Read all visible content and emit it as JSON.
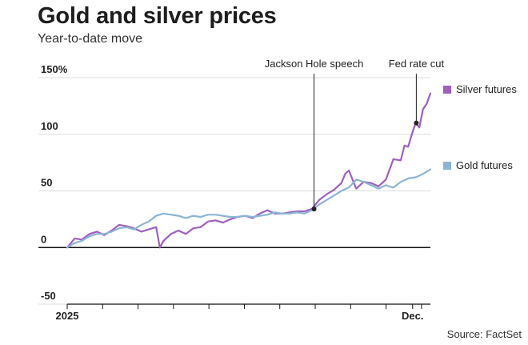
{
  "header": {
    "title": "Gold and silver prices",
    "subtitle": "Year-to-date move",
    "source": "Source: FactSet"
  },
  "chart_data": {
    "type": "line",
    "title": "Gold and silver prices",
    "subtitle": "Year-to-date move",
    "xlabel": "",
    "ylabel": "",
    "x_tick_labels": [
      "2025",
      "Dec."
    ],
    "y_tick_labels": [
      "150%",
      "100",
      "50",
      "0",
      "-50"
    ],
    "y_ticks": [
      150,
      100,
      50,
      0,
      -50
    ],
    "ylim": [
      -50,
      150
    ],
    "x_unit": "weeks since start of 2025",
    "xlim": [
      0,
      49
    ],
    "grid": true,
    "legend_position": "right",
    "annotations": [
      {
        "label": "Jackson Hole speech",
        "x": 33.3,
        "y": 34
      },
      {
        "label": "Fed rate cut",
        "x": 47.1,
        "y": 110
      }
    ],
    "series": [
      {
        "name": "Silver futures",
        "color": "#a05fbf",
        "x": [
          0,
          1,
          2,
          3,
          4,
          5,
          6,
          7,
          8,
          9,
          10,
          11,
          12,
          12.5,
          13,
          14,
          15,
          16,
          17,
          18,
          19,
          20,
          21,
          22,
          23,
          24,
          25,
          26,
          27,
          28,
          29,
          30,
          31,
          32,
          33,
          34,
          35,
          36,
          37,
          37.5,
          38,
          39,
          40,
          41,
          42,
          43,
          44,
          45,
          45.5,
          46,
          46.5,
          47,
          47.5,
          48,
          48.5,
          49
        ],
        "values": [
          0,
          8,
          7,
          12,
          14,
          11,
          15,
          20,
          19,
          17,
          14,
          16,
          18,
          0,
          6,
          12,
          15,
          12,
          17,
          18,
          23,
          24,
          22,
          25,
          27,
          28,
          26,
          30,
          33,
          30,
          30,
          31,
          32,
          32,
          34,
          42,
          47,
          51,
          57,
          65,
          68,
          52,
          58,
          57,
          54,
          60,
          78,
          77,
          90,
          89,
          100,
          110,
          106,
          122,
          127,
          136
        ]
      },
      {
        "name": "Gold futures",
        "color": "#8bb5d6",
        "x": [
          0,
          1,
          2,
          3,
          4,
          5,
          6,
          7,
          8,
          9,
          10,
          11,
          12,
          13,
          14,
          15,
          16,
          17,
          18,
          19,
          20,
          21,
          22,
          23,
          24,
          25,
          26,
          27,
          28,
          29,
          30,
          31,
          32,
          33,
          34,
          35,
          36,
          37,
          38,
          39,
          40,
          41,
          42,
          43,
          44,
          45,
          46,
          47,
          48,
          49
        ],
        "values": [
          0,
          4,
          6,
          10,
          12,
          12,
          14,
          17,
          18,
          16,
          20,
          23,
          28,
          30,
          29,
          28,
          26,
          28,
          27,
          29,
          29,
          28,
          27,
          27,
          28,
          27,
          28,
          29,
          31,
          30,
          30,
          31,
          30,
          33,
          38,
          42,
          46,
          50,
          53,
          60,
          58,
          55,
          52,
          55,
          53,
          58,
          61,
          62,
          65,
          69
        ]
      }
    ]
  }
}
